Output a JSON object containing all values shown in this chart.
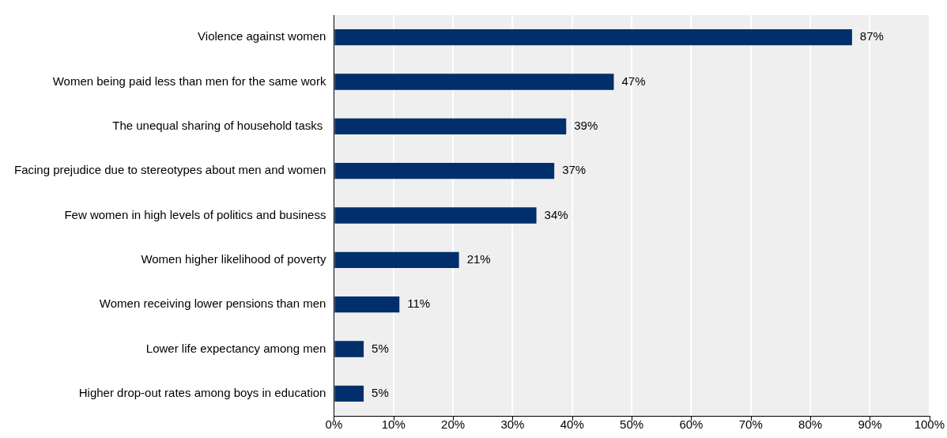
{
  "chart_data": {
    "type": "bar",
    "orientation": "horizontal",
    "categories": [
      "Violence against women",
      "Women being paid less than men for the same work",
      "The unequal sharing of household tasks ",
      "Facing prejudice due to stereotypes about men and women",
      "Few women in high levels of politics and business",
      "Women higher likelihood of poverty",
      "Women receiving lower pensions than men",
      "Lower life expectancy among men",
      "Higher drop-out rates among boys in education"
    ],
    "values": [
      87,
      47,
      39,
      37,
      34,
      21,
      11,
      5,
      5
    ],
    "value_labels": [
      "87%",
      "47%",
      "39%",
      "37%",
      "34%",
      "21%",
      "11%",
      "5%",
      "5%"
    ],
    "color": "#002f6c",
    "xlim": [
      0,
      100
    ],
    "xticks": [
      {
        "value": 0,
        "label": "0%"
      },
      {
        "value": 10,
        "label": "10%"
      },
      {
        "value": 20,
        "label": "20%"
      },
      {
        "value": 30,
        "label": "30%"
      },
      {
        "value": 40,
        "label": "40%"
      },
      {
        "value": 50,
        "label": "50%"
      },
      {
        "value": 60,
        "label": "60%"
      },
      {
        "value": 70,
        "label": "70%"
      },
      {
        "value": 80,
        "label": "80%"
      },
      {
        "value": 90,
        "label": "90%"
      },
      {
        "value": 100,
        "label": "100%"
      }
    ],
    "grid": "x"
  }
}
